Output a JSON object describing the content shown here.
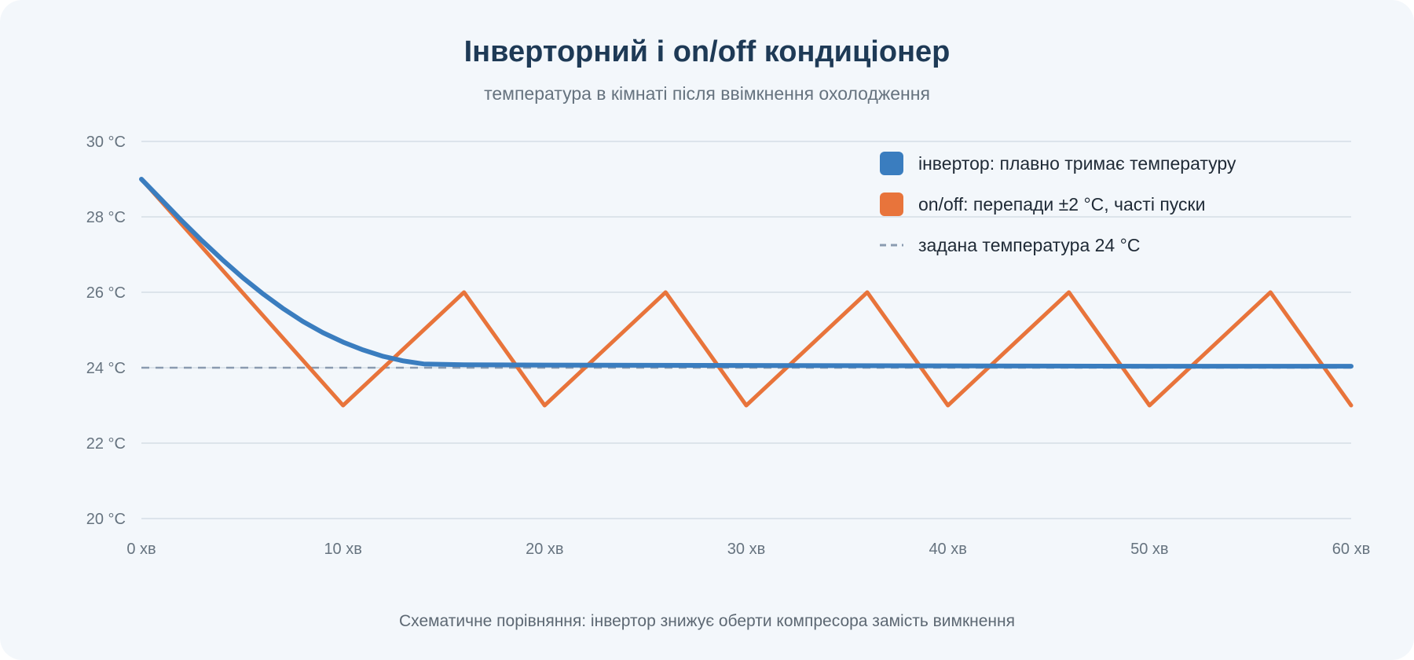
{
  "chart_data": {
    "type": "line",
    "title": "Інверторний і on/off кондиціонер",
    "subtitle": "температура в кімнаті після ввімкнення охолодження",
    "footnote": "Схематичне порівняння: інвертор знижує оберти компресора замість вимкнення",
    "x_ticks": [
      "0 хв",
      "10 хв",
      "20 хв",
      "30 хв",
      "40 хв",
      "50 хв",
      "60 хв"
    ],
    "y_ticks": [
      "20 °C",
      "22 °C",
      "24 °C",
      "26 °C",
      "28 °C",
      "30 °C"
    ],
    "xlim": [
      0,
      60
    ],
    "ylim": [
      20,
      30
    ],
    "grid": true,
    "legend_position": "top-right",
    "series": [
      {
        "name": "інвертор: плавно тримає температуру",
        "color": "#3a7dbf",
        "x": [
          0,
          1,
          2,
          3,
          4,
          5,
          6,
          7,
          8,
          9,
          10,
          11,
          12,
          13,
          14,
          16,
          20,
          30,
          40,
          50,
          60
        ],
        "y": [
          29.0,
          28.45,
          27.9,
          27.37,
          26.87,
          26.4,
          25.97,
          25.58,
          25.23,
          24.93,
          24.68,
          24.47,
          24.3,
          24.18,
          24.1,
          24.08,
          24.07,
          24.06,
          24.05,
          24.04,
          24.04
        ]
      },
      {
        "name": "on/off: перепади ±2 °C, часті пуски",
        "color": "#e8743b",
        "x": [
          0,
          10,
          16,
          20,
          26,
          30,
          36,
          40,
          46,
          50,
          56,
          60
        ],
        "y": [
          29,
          23,
          26,
          23,
          26,
          23,
          26,
          23,
          26,
          23,
          26,
          23
        ]
      },
      {
        "name": "задана температура 24 °C",
        "color": "#8a9bb0",
        "dashed": true,
        "x": [
          0,
          60
        ],
        "y": [
          24,
          24
        ]
      }
    ]
  }
}
